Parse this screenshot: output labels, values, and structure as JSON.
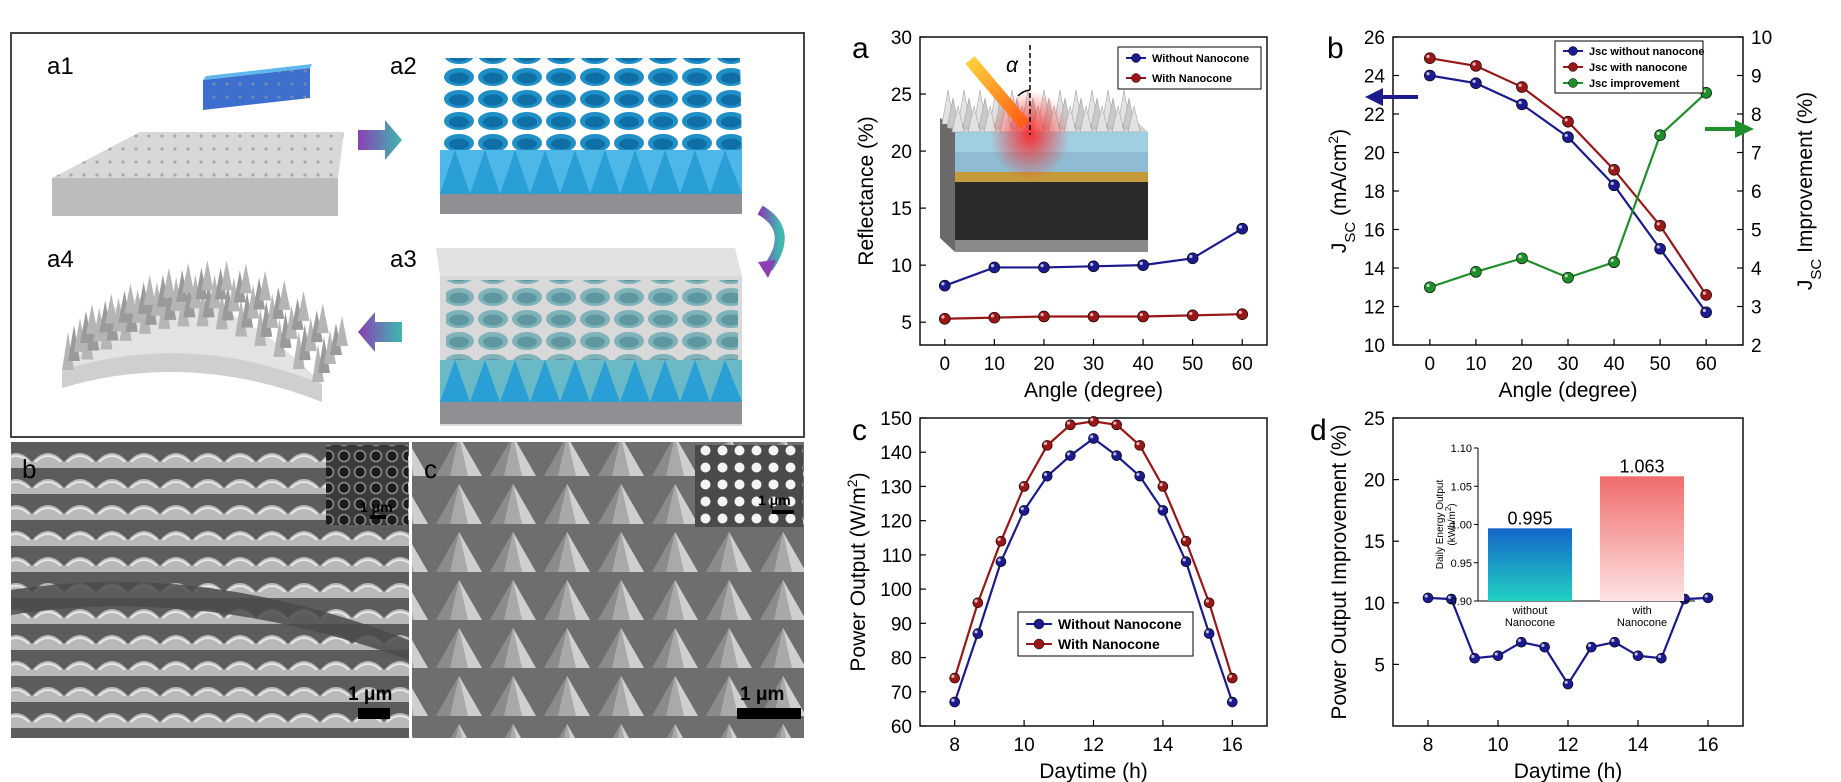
{
  "schematic": {
    "steps": [
      {
        "label": "a1"
      },
      {
        "label": "a2"
      },
      {
        "label": "a3"
      },
      {
        "label": "a4"
      }
    ]
  },
  "sem": [
    {
      "label": "b",
      "scale_bar": "1 μm",
      "inset_scale_bar": "1 μm"
    },
    {
      "label": "c",
      "scale_bar": "1 μm",
      "inset_scale_bar": "1 μm"
    }
  ],
  "colors": {
    "blue": "#1b1b8f",
    "red": "#9b1616",
    "green": "#1f8f2a"
  },
  "chart_data": [
    {
      "panel": "a",
      "type": "line",
      "x": [
        0,
        10,
        20,
        30,
        40,
        50,
        60
      ],
      "xlabel": "Angle (degree)",
      "ylabel": "Reflectance (%)",
      "xlim": [
        -5,
        65
      ],
      "ylim": [
        3,
        30
      ],
      "xticks": [
        "0",
        "10",
        "20",
        "30",
        "40",
        "50",
        "60"
      ],
      "yticks": [
        "5",
        "10",
        "15",
        "20",
        "25",
        "30"
      ],
      "legend_position": "top-right",
      "inset_symbol": "α",
      "series": [
        {
          "name": "Without Nanocone",
          "values": [
            8.2,
            9.8,
            9.8,
            9.9,
            10.0,
            10.6,
            13.2
          ],
          "color": "#1b1b8f"
        },
        {
          "name": "With Nanocone",
          "values": [
            5.3,
            5.4,
            5.5,
            5.5,
            5.5,
            5.6,
            5.7
          ],
          "color": "#9b1616"
        }
      ]
    },
    {
      "panel": "b",
      "type": "line",
      "x": [
        0,
        10,
        20,
        30,
        40,
        50,
        60
      ],
      "xlabel": "Angle (degree)",
      "ylabel_main": "J",
      "ylabel_sub": "SC",
      "ylabel_unit_pre": " (mA/cm",
      "ylabel_unit_sup": "2",
      "ylabel_unit_post": ")",
      "y2label_main": "J",
      "y2label_sub": "SC",
      "y2label_rest": " Improvement (%)",
      "xlim": [
        -8,
        68
      ],
      "ylim": [
        10,
        26
      ],
      "y2lim": [
        2,
        10
      ],
      "xticks": [
        "0",
        "10",
        "20",
        "30",
        "40",
        "50",
        "60"
      ],
      "yticks": [
        "10",
        "12",
        "14",
        "16",
        "18",
        "20",
        "22",
        "24",
        "26"
      ],
      "y2ticks": [
        "2",
        "3",
        "4",
        "5",
        "6",
        "7",
        "8",
        "9",
        "10"
      ],
      "legend_position": "top-center",
      "series": [
        {
          "name": "Jsc without nanocone",
          "axis": "left",
          "values": [
            24.0,
            23.6,
            22.5,
            20.8,
            18.3,
            15.0,
            11.7
          ],
          "color": "#1b1b8f"
        },
        {
          "name": "Jsc with nanocone",
          "axis": "left",
          "values": [
            24.9,
            24.5,
            23.4,
            21.6,
            19.1,
            16.2,
            12.6
          ],
          "color": "#9b1616"
        },
        {
          "name": "Jsc improvement",
          "axis": "right",
          "values": [
            3.5,
            3.9,
            4.25,
            3.75,
            4.15,
            7.45,
            8.55
          ],
          "color": "#1f8f2a"
        }
      ]
    },
    {
      "panel": "c",
      "type": "line",
      "x": [
        8,
        8.667,
        9.333,
        10,
        10.667,
        11.333,
        12,
        12.667,
        13.333,
        14,
        14.667,
        15.333,
        16
      ],
      "xlabel": "Daytime (h)",
      "ylabel_pre": "Power Output (W/m",
      "ylabel_sup": "2",
      "ylabel_post": ")",
      "xlim": [
        7,
        17
      ],
      "ylim": [
        60,
        150
      ],
      "xticks": [
        "8",
        "10",
        "12",
        "14",
        "16"
      ],
      "yticks": [
        "60",
        "70",
        "80",
        "90",
        "100",
        "110",
        "120",
        "130",
        "140",
        "150"
      ],
      "legend_position": "bottom-center",
      "series": [
        {
          "name": "Without Nanocone",
          "values": [
            67,
            87,
            108,
            123,
            133,
            139,
            144,
            139,
            133,
            123,
            108,
            87,
            67
          ],
          "color": "#1b1b8f"
        },
        {
          "name": "With Nanocone",
          "values": [
            74,
            96,
            114,
            130,
            142,
            148,
            149,
            148,
            142,
            130,
            114,
            96,
            74
          ],
          "color": "#9b1616"
        }
      ]
    },
    {
      "panel": "d",
      "type": "line",
      "x": [
        8,
        8.667,
        9.333,
        10,
        10.667,
        11.333,
        12,
        12.667,
        13.333,
        14,
        14.667,
        15.333,
        16
      ],
      "xlabel": "Daytime (h)",
      "ylabel": "Power Output Improvement (%)",
      "xlim": [
        7,
        17
      ],
      "ylim": [
        0,
        25
      ],
      "xticks": [
        "8",
        "10",
        "12",
        "14",
        "16"
      ],
      "yticks": [
        "5",
        "10",
        "15",
        "20",
        "25"
      ],
      "series": [
        {
          "name": "",
          "values": [
            10.4,
            10.3,
            5.5,
            5.7,
            6.8,
            6.4,
            3.4,
            6.4,
            6.8,
            5.7,
            5.5,
            10.3,
            10.4
          ],
          "color": "#1b1b8f"
        }
      ],
      "inset": {
        "type": "bar",
        "ylabel_line1": "Daily Energy Output",
        "ylabel_pre": "(kWh/m",
        "ylabel_sup": "2",
        "ylabel_post": ")",
        "ylim": [
          0.9,
          1.1
        ],
        "yticks": [
          "0.90",
          "0.95",
          "1.00",
          "1.05",
          "1.10"
        ],
        "categories": [
          {
            "line1": "without",
            "line2": "Nanocone"
          },
          {
            "line1": "with",
            "line2": "Nanocone"
          }
        ],
        "values": [
          0.995,
          1.063
        ],
        "value_labels": [
          "0.995",
          "1.063"
        ]
      }
    }
  ]
}
